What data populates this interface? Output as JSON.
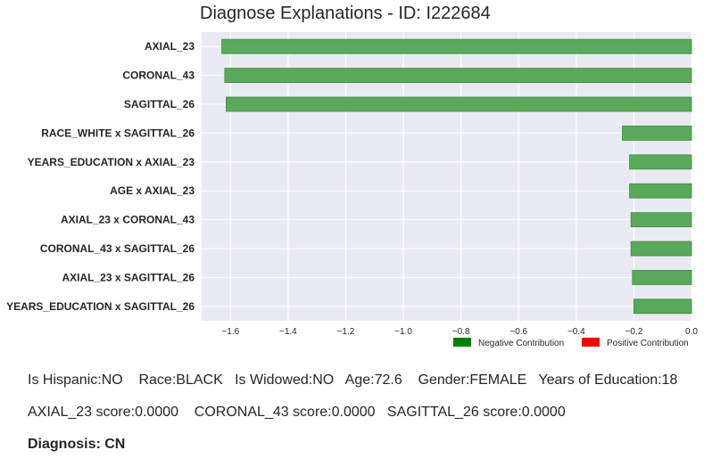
{
  "chart_data": {
    "type": "bar",
    "orientation": "horizontal",
    "title": "Diagnose Explanations - ID: I222684",
    "categories": [
      "AXIAL_23",
      "CORONAL_43",
      "SAGITTAL_26",
      "RACE_WHITE x SAGITTAL_26",
      "YEARS_EDUCATION x AXIAL_23",
      "AGE x AXIAL_23",
      "AXIAL_23 x CORONAL_43",
      "CORONAL_43 x SAGITTAL_26",
      "AXIAL_23 x SAGITTAL_26",
      "YEARS_EDUCATION x SAGITTAL_26"
    ],
    "values": [
      -1.63,
      -1.62,
      -1.615,
      -0.24,
      -0.215,
      -0.215,
      -0.21,
      -0.21,
      -0.205,
      -0.2
    ],
    "xlim": [
      -1.7,
      0.0
    ],
    "xticks": [
      -1.6,
      -1.4,
      -1.2,
      -1.0,
      -0.8,
      -0.6,
      -0.4,
      -0.2,
      0.0
    ],
    "xtick_labels": [
      "−1.6",
      "−1.4",
      "−1.2",
      "−1.0",
      "−0.8",
      "−0.6",
      "−0.4",
      "−0.2",
      "0.0"
    ],
    "grid": true,
    "bar_color": "#5aa95a",
    "bar_edge_color": "#3f8a3f",
    "plot_background": "#eaeaf2",
    "legend": {
      "placement": "bottom-right",
      "entries": [
        {
          "label": "Negative Contribution",
          "color": "#008000"
        },
        {
          "label": "Positive Contribution",
          "color": "#ff0000"
        }
      ]
    }
  },
  "info": {
    "line1": "Is Hispanic:NO    Race:BLACK   Is Widowed:NO   Age:72.6    Gender:FEMALE   Years of Education:18",
    "line2": "AXIAL_23 score:0.0000    CORONAL_43 score:0.0000   SAGITTAL_26 score:0.0000",
    "diagnosis": "Diagnosis: CN"
  }
}
